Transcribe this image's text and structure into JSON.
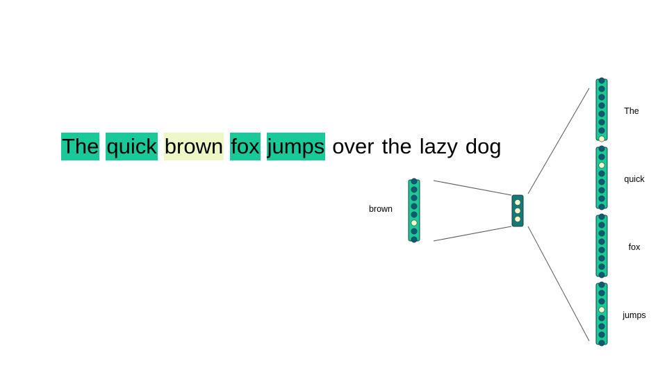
{
  "colors": {
    "context_highlight": "#19c99a",
    "center_highlight": "#eef7c6",
    "vector_fill": "#19c99a",
    "hidden_fill": "#127a78",
    "node_off": "#0e5a73",
    "node_on": "#f4f6c8",
    "line": "#555555"
  },
  "sentence": [
    {
      "text": "The",
      "role": "context"
    },
    {
      "text": "quick",
      "role": "context"
    },
    {
      "text": "brown",
      "role": "center"
    },
    {
      "text": "fox",
      "role": "context"
    },
    {
      "text": "jumps",
      "role": "context"
    },
    {
      "text": "over",
      "role": "plain"
    },
    {
      "text": "the",
      "role": "plain"
    },
    {
      "text": "lazy",
      "role": "plain"
    },
    {
      "text": "dog",
      "role": "plain"
    }
  ],
  "input": {
    "label": "brown",
    "active_node": 6,
    "nodes": 8
  },
  "hidden": {
    "nodes": 3,
    "active_nodes": [
      1,
      2,
      3
    ]
  },
  "outputs": [
    {
      "label": "The",
      "active_node": 8,
      "nodes": 8
    },
    {
      "label": "quick",
      "active_node": 3,
      "nodes": 8
    },
    {
      "label": "fox",
      "active_node": 0,
      "nodes": 8
    },
    {
      "label": "jumps",
      "active_node": 4,
      "nodes": 8
    }
  ]
}
